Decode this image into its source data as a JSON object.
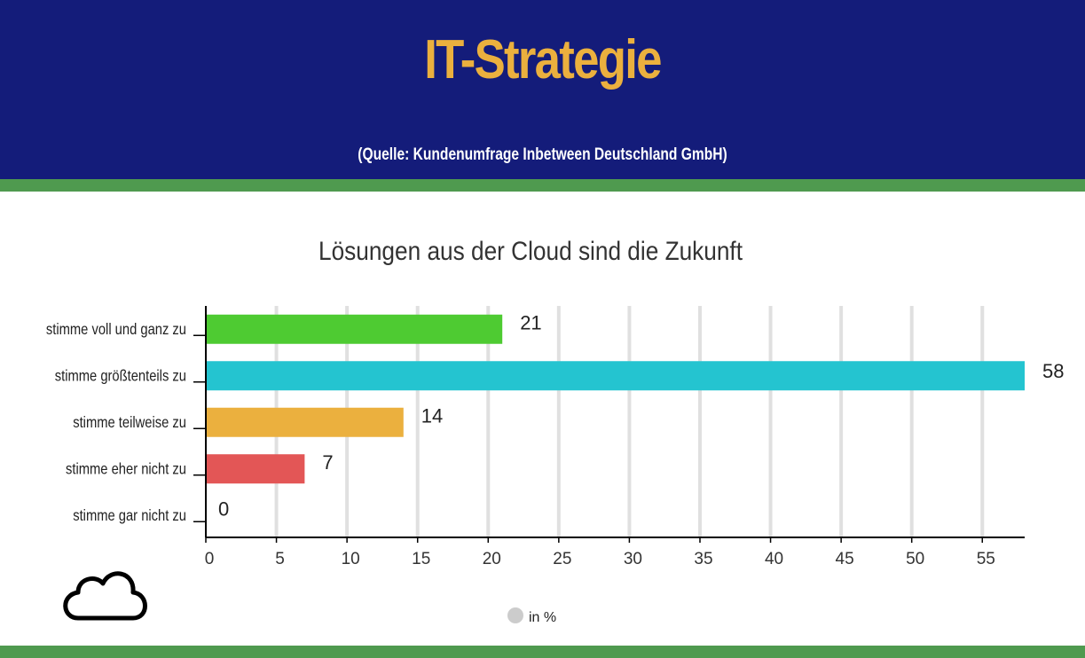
{
  "header": {
    "title": "IT-Strategie",
    "source": "(Quelle: Kundenumfrage Inbetween Deutschland GmbH)"
  },
  "colors": {
    "header_bg": "#141c7a",
    "title": "#ebb03e",
    "band": "#4f9a4f"
  },
  "chart_data": {
    "type": "bar",
    "orientation": "horizontal",
    "title": "Lösungen aus der Cloud sind die Zukunft",
    "categories": [
      "stimme voll und ganz zu",
      "stimme größtenteils zu",
      "stimme teilweise zu",
      "stimme eher nicht zu",
      "stimme gar nicht zu"
    ],
    "values": [
      21,
      58,
      14,
      7,
      0
    ],
    "bar_colors": [
      "#4ecb32",
      "#24c4d0",
      "#ebb03e",
      "#e35656",
      "#cccccc"
    ],
    "xlim": [
      0,
      58
    ],
    "xticks": [
      0,
      5,
      10,
      15,
      20,
      25,
      30,
      35,
      40,
      45,
      50,
      55
    ],
    "grid": true,
    "legend": {
      "label": "in %",
      "color": "#cccccc",
      "placement": "bottom-center"
    },
    "xlabel": "",
    "ylabel": ""
  }
}
